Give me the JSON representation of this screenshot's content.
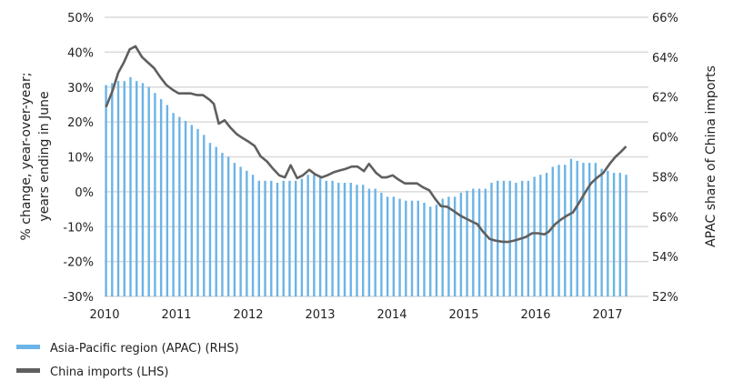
{
  "chart_data": {
    "type": "bar+line",
    "xlabel": "",
    "ylabel_left": [
      "% change, year-over-year;",
      "years ending in June"
    ],
    "ylabel_right": "APAC share of China imports",
    "x_ticks": [
      2010,
      2011,
      2012,
      2013,
      2014,
      2015,
      2016,
      2017
    ],
    "x_tick_labels": [
      "2010",
      "2011",
      "2012",
      "2013",
      "2014",
      "2015",
      "2016",
      "2017"
    ],
    "xlim": [
      2010,
      2017.5
    ],
    "y_left_ticks": [
      -30,
      -20,
      -10,
      0,
      10,
      20,
      30,
      40,
      50
    ],
    "y_left_tick_labels": [
      "-30%",
      "-20%",
      "-10%",
      "0%",
      "10%",
      "20%",
      "30%",
      "40%",
      "50%"
    ],
    "ylim_left": [
      -30,
      50
    ],
    "y_right_ticks": [
      52,
      54,
      56,
      58,
      60,
      62,
      64,
      66
    ],
    "y_right_tick_labels": [
      "52%",
      "54%",
      "56%",
      "58%",
      "60%",
      "62%",
      "64%",
      "66%"
    ],
    "ylim_right": [
      52,
      66
    ],
    "grid": true,
    "legend_position": "bottom-left",
    "series": [
      {
        "name": "Asia-Pacific region (APAC) (RHS)",
        "type": "bar",
        "axis": "right",
        "color": "#6cb4e6",
        "x_start": 2010.02,
        "x_end": 2017.26,
        "values": [
          62.6,
          62.7,
          62.8,
          62.8,
          63.0,
          62.8,
          62.7,
          62.5,
          62.2,
          61.9,
          61.6,
          61.2,
          61.0,
          60.8,
          60.6,
          60.4,
          60.1,
          59.7,
          59.5,
          59.2,
          59.0,
          58.7,
          58.5,
          58.3,
          58.1,
          57.8,
          57.8,
          57.8,
          57.7,
          57.8,
          57.8,
          57.8,
          57.9,
          58.1,
          58.1,
          58.0,
          57.8,
          57.8,
          57.7,
          57.7,
          57.7,
          57.6,
          57.6,
          57.4,
          57.4,
          57.2,
          57.0,
          57.0,
          56.9,
          56.8,
          56.8,
          56.8,
          56.7,
          56.5,
          56.6,
          56.9,
          57.0,
          57.0,
          57.2,
          57.3,
          57.4,
          57.4,
          57.4,
          57.7,
          57.8,
          57.8,
          57.8,
          57.7,
          57.8,
          57.8,
          58.0,
          58.1,
          58.2,
          58.5,
          58.6,
          58.6,
          58.9,
          58.8,
          58.7,
          58.7,
          58.7,
          58.4,
          58.3,
          58.2,
          58.2,
          58.1
        ]
      },
      {
        "name": "China imports (LHS)",
        "type": "line",
        "axis": "left",
        "color": "#5f5f5f",
        "x": [
          2010.02,
          2010.11,
          2010.19,
          2010.27,
          2010.35,
          2010.43,
          2010.52,
          2010.6,
          2010.69,
          2010.77,
          2010.86,
          2010.94,
          2011.03,
          2011.12,
          2011.2,
          2011.29,
          2011.37,
          2011.46,
          2011.52,
          2011.59,
          2011.67,
          2011.75,
          2011.84,
          2011.92,
          2012.0,
          2012.09,
          2012.17,
          2012.26,
          2012.34,
          2012.43,
          2012.51,
          2012.59,
          2012.68,
          2012.76,
          2012.85,
          2012.93,
          2013.02,
          2013.1,
          2013.19,
          2013.27,
          2013.35,
          2013.44,
          2013.52,
          2013.61,
          2013.68,
          2013.78,
          2013.86,
          2013.92,
          2014.01,
          2014.09,
          2014.18,
          2014.26,
          2014.35,
          2014.43,
          2014.52,
          2014.6,
          2014.68,
          2014.77,
          2014.85,
          2014.94,
          2015.02,
          2015.11,
          2015.19,
          2015.27,
          2015.36,
          2015.44,
          2015.53,
          2015.61,
          2015.7,
          2015.78,
          2015.86,
          2015.95,
          2016.03,
          2016.12,
          2016.18,
          2016.27,
          2016.35,
          2016.43,
          2016.52,
          2016.6,
          2016.69,
          2016.77,
          2016.86,
          2016.94,
          2017.03,
          2017.11,
          2017.19,
          2017.26
        ],
        "y": [
          24.3,
          28.9,
          34.1,
          37.1,
          40.8,
          41.7,
          38.6,
          37.1,
          35.4,
          33.0,
          30.6,
          29.3,
          28.2,
          28.2,
          28.2,
          27.7,
          27.7,
          26.4,
          25.2,
          19.5,
          20.5,
          18.4,
          16.5,
          15.4,
          14.4,
          13.1,
          10.2,
          8.7,
          6.7,
          4.7,
          4.1,
          7.6,
          3.9,
          4.7,
          6.3,
          5.0,
          4.1,
          4.7,
          5.6,
          6.1,
          6.5,
          7.2,
          7.2,
          5.9,
          8.0,
          5.4,
          4.1,
          4.1,
          4.7,
          3.5,
          2.4,
          2.4,
          2.4,
          1.3,
          0.4,
          -2.0,
          -4.1,
          -4.3,
          -5.4,
          -6.7,
          -7.6,
          -8.5,
          -9.3,
          -11.5,
          -13.5,
          -14.0,
          -14.3,
          -14.4,
          -14.0,
          -13.5,
          -13.0,
          -11.9,
          -11.9,
          -12.2,
          -11.5,
          -9.3,
          -8.0,
          -6.9,
          -5.9,
          -3.3,
          -0.2,
          2.4,
          4.1,
          5.4,
          8.0,
          10.0,
          11.5,
          13.0
        ]
      }
    ]
  }
}
